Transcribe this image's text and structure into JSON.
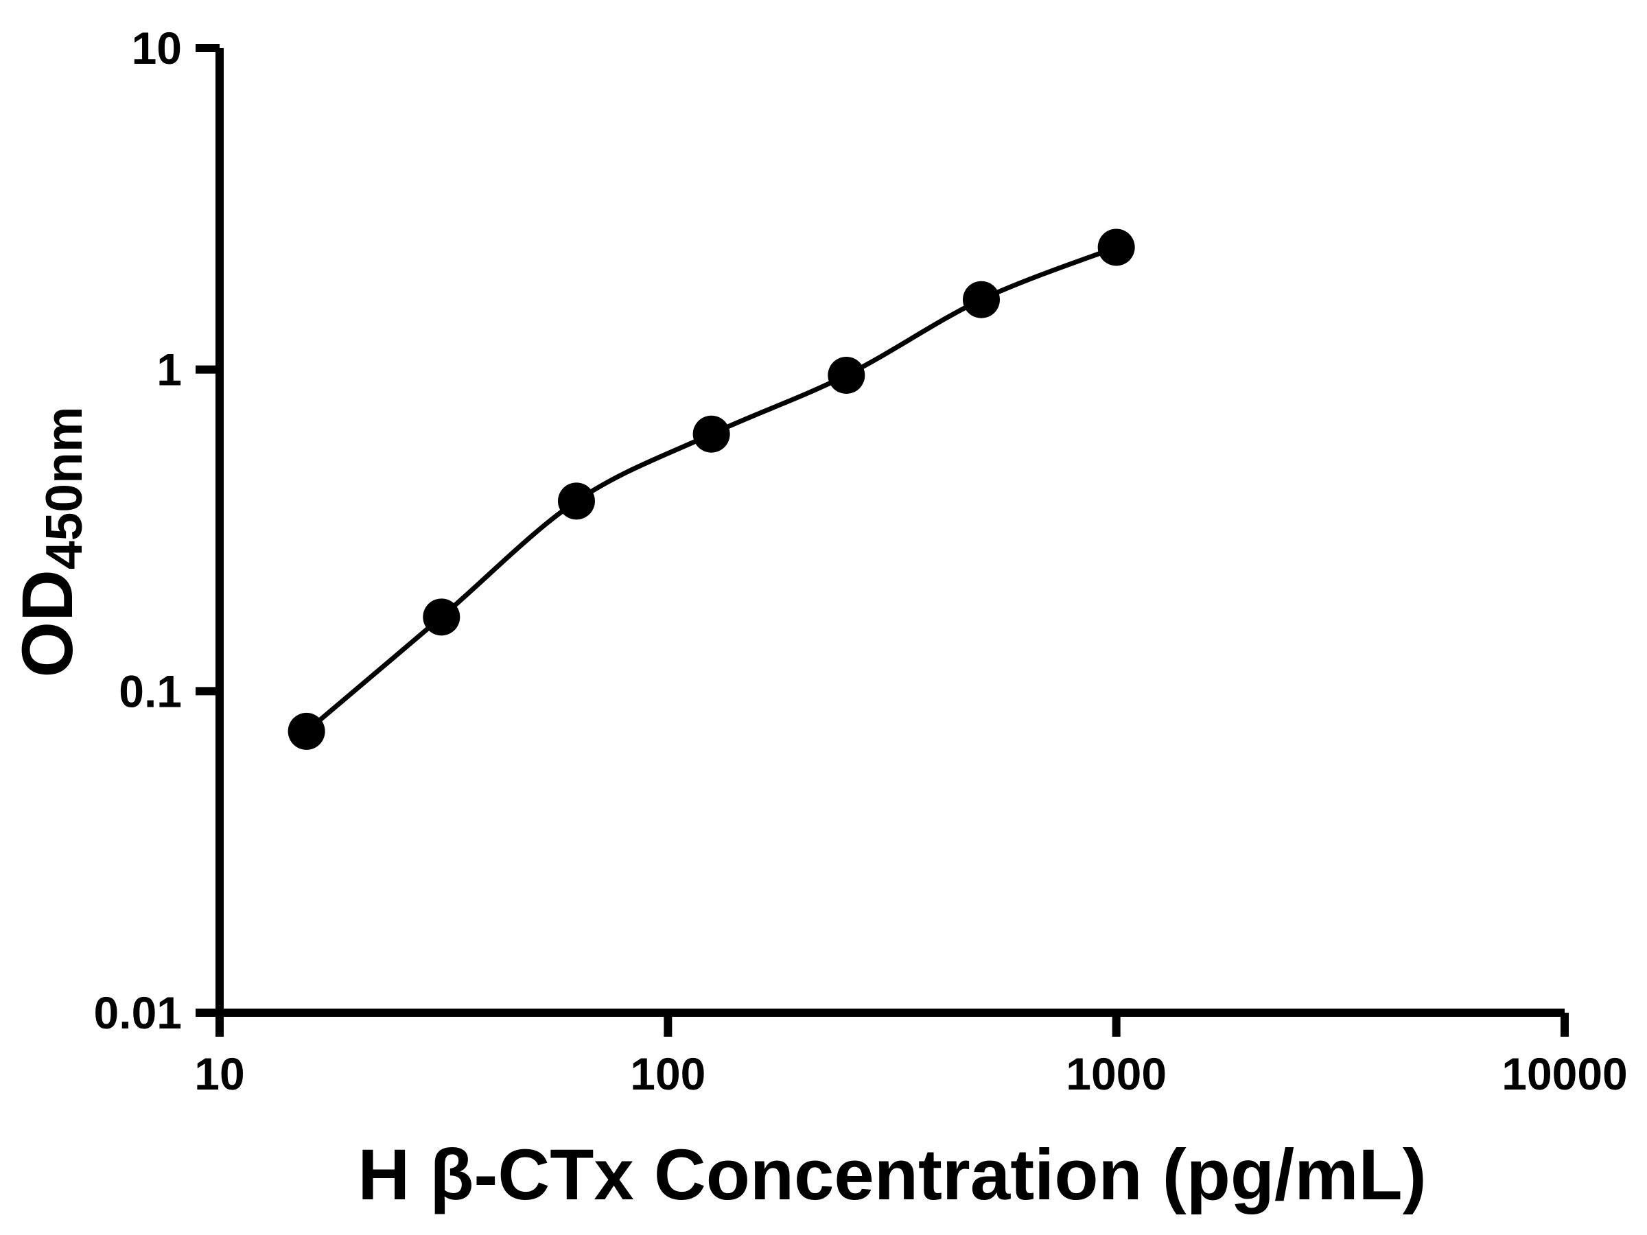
{
  "chart_data": {
    "type": "scatter",
    "title": "",
    "xlabel": "H β-CTx Concentration (pg/mL)",
    "ylabel_main": "OD",
    "ylabel_sub": "450nm",
    "x_scale": "log",
    "y_scale": "log",
    "xlim": [
      10,
      10000
    ],
    "ylim": [
      0.01,
      10
    ],
    "x_ticks": [
      10,
      100,
      1000,
      10000
    ],
    "y_ticks": [
      0.01,
      0.1,
      1,
      10
    ],
    "grid": false,
    "legend": false,
    "points": [
      {
        "x": 15.625,
        "y": 0.075
      },
      {
        "x": 31.25,
        "y": 0.17
      },
      {
        "x": 62.5,
        "y": 0.39
      },
      {
        "x": 125,
        "y": 0.63
      },
      {
        "x": 250,
        "y": 0.96
      },
      {
        "x": 500,
        "y": 1.65
      },
      {
        "x": 1000,
        "y": 2.4
      }
    ],
    "curve": "smooth-through-points",
    "marker_color": "#000000",
    "line_color": "#000000",
    "axis_color": "#000000",
    "background": "#ffffff"
  }
}
